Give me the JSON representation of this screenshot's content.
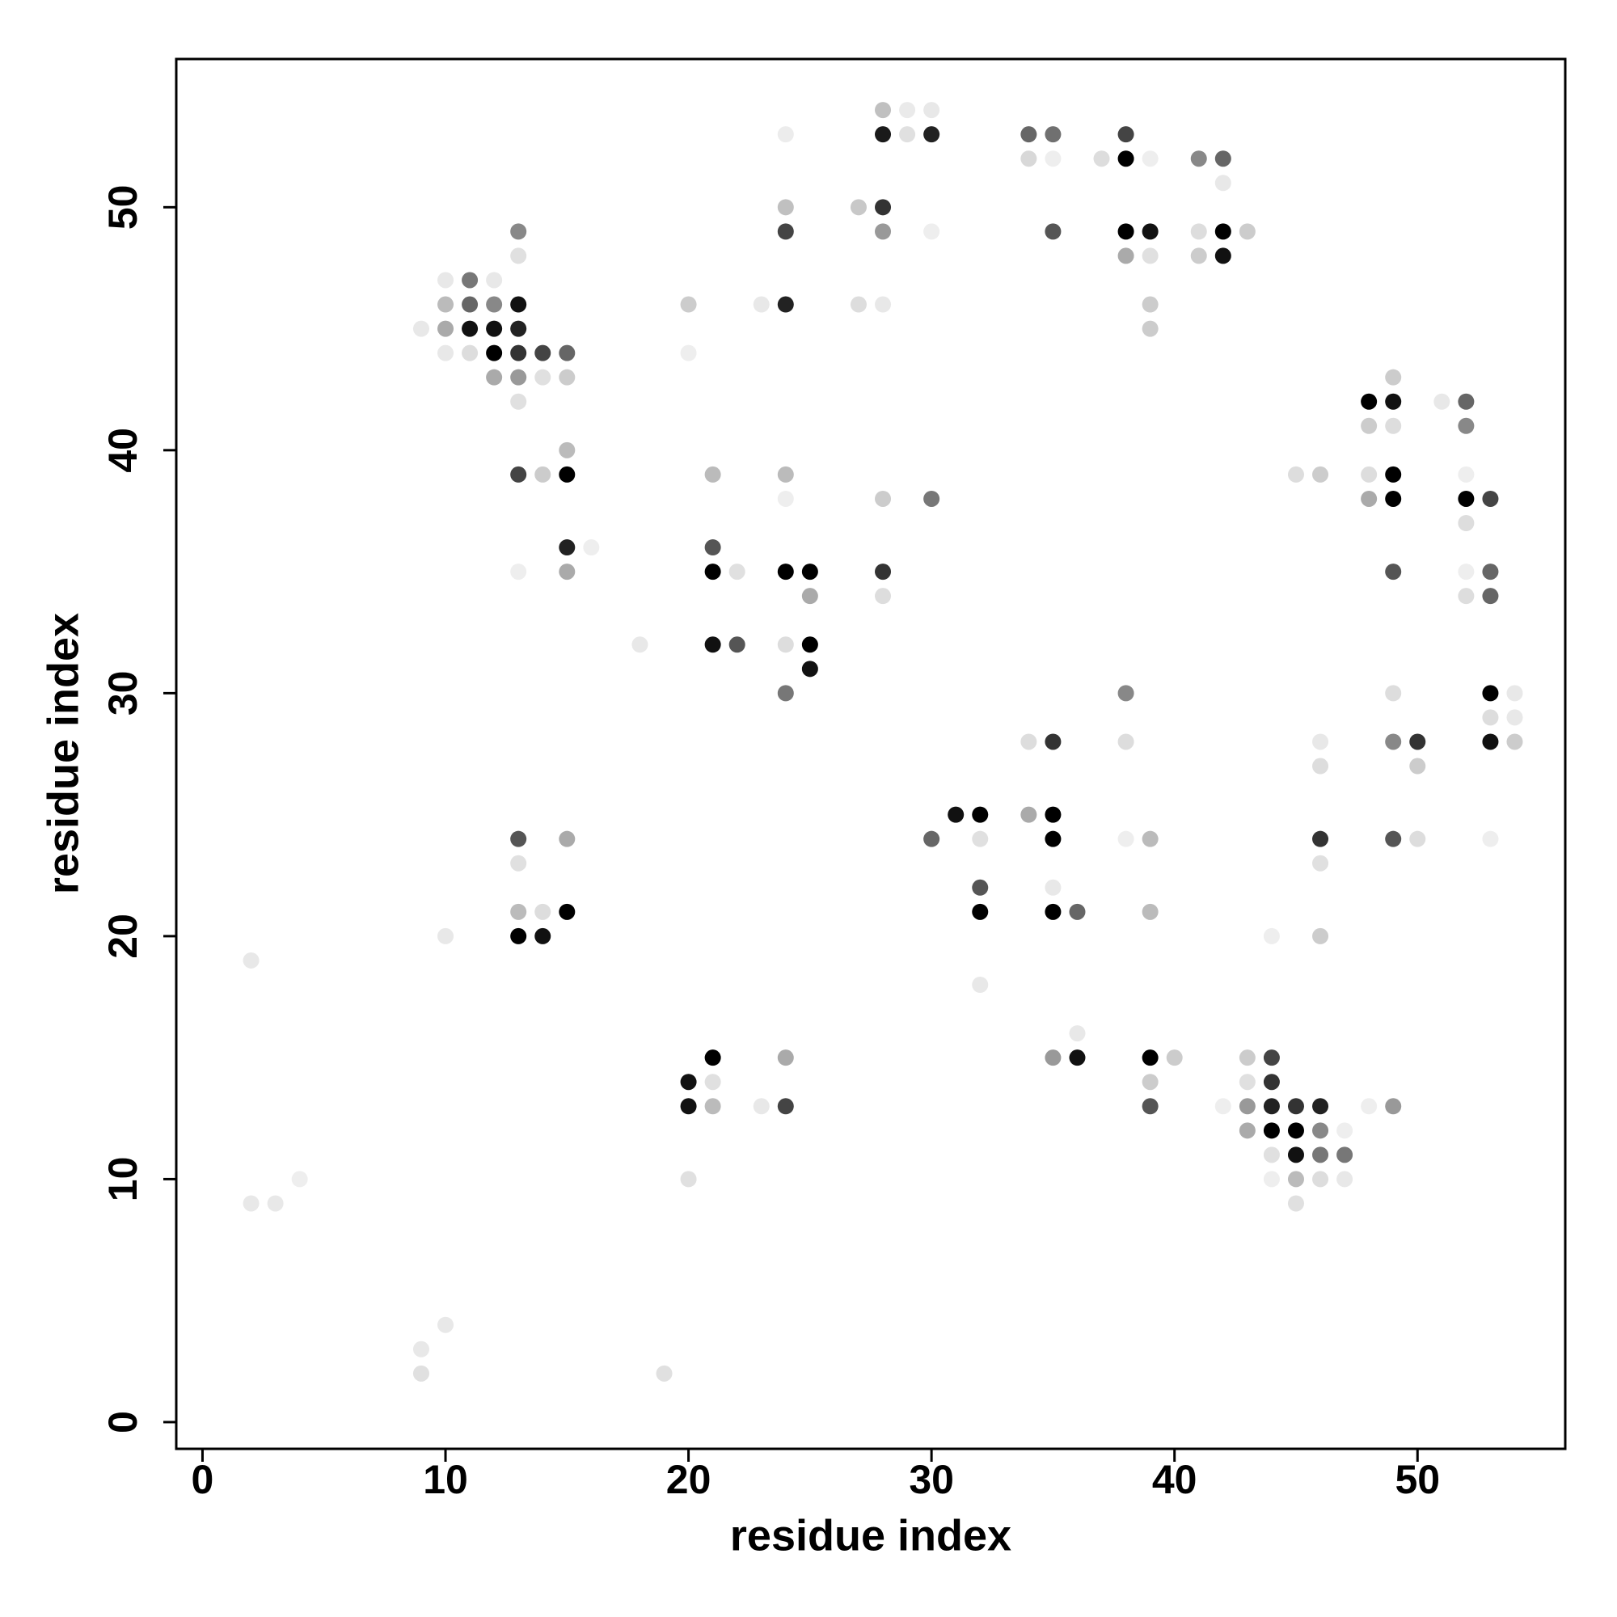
{
  "chart_data": {
    "type": "scatter",
    "xlabel": "residue index",
    "ylabel": "residue index",
    "xlim": [
      -1.08,
      56.08
    ],
    "ylim": [
      -1.1,
      56.1
    ],
    "xticks": [
      0,
      10,
      20,
      30,
      40,
      50
    ],
    "yticks": [
      0,
      10,
      20,
      30,
      40,
      50
    ],
    "x": [
      28,
      29,
      30,
      24,
      28,
      29,
      30,
      34,
      35,
      38,
      34,
      35,
      37,
      38,
      39,
      41,
      42,
      42,
      24,
      27,
      28,
      13,
      24,
      28,
      30,
      35,
      38,
      39,
      41,
      42,
      43,
      13,
      38,
      39,
      41,
      42,
      10,
      11,
      12,
      10,
      11,
      12,
      13,
      20,
      23,
      24,
      27,
      28,
      39,
      9,
      10,
      11,
      12,
      13,
      39,
      10,
      11,
      12,
      13,
      14,
      15,
      20,
      12,
      13,
      14,
      15,
      49,
      13,
      48,
      49,
      51,
      52,
      48,
      49,
      52,
      15,
      13,
      14,
      15,
      21,
      24,
      45,
      46,
      48,
      49,
      52,
      24,
      28,
      30,
      48,
      49,
      52,
      53,
      52,
      15,
      16,
      21,
      13,
      15,
      21,
      22,
      24,
      25,
      28,
      49,
      52,
      53,
      25,
      28,
      52,
      53,
      18,
      21,
      22,
      24,
      25,
      25,
      24,
      38,
      49,
      53,
      54,
      53,
      54,
      34,
      35,
      38,
      46,
      49,
      50,
      53,
      54,
      46,
      50,
      31,
      32,
      34,
      35,
      13,
      15,
      30,
      32,
      35,
      38,
      39,
      46,
      49,
      50,
      53,
      13,
      46,
      32,
      35,
      13,
      14,
      15,
      32,
      35,
      36,
      39,
      10,
      13,
      14,
      44,
      46,
      2,
      32,
      36,
      21,
      24,
      35,
      36,
      39,
      40,
      43,
      44,
      20,
      21,
      39,
      43,
      44,
      20,
      21,
      23,
      24,
      39,
      42,
      43,
      44,
      45,
      46,
      48,
      49,
      43,
      44,
      45,
      46,
      47,
      44,
      45,
      46,
      47,
      4,
      20,
      44,
      45,
      46,
      47,
      2,
      3,
      45,
      10,
      9,
      9,
      19
    ],
    "values": [
      54,
      54,
      54,
      53,
      53,
      53,
      53,
      53,
      53,
      53,
      52,
      52,
      52,
      52,
      52,
      52,
      52,
      51,
      50,
      50,
      50,
      49,
      49,
      49,
      49,
      49,
      49,
      49,
      49,
      49,
      49,
      48,
      48,
      48,
      48,
      48,
      47,
      47,
      47,
      46,
      46,
      46,
      46,
      46,
      46,
      46,
      46,
      46,
      46,
      45,
      45,
      45,
      45,
      45,
      45,
      44,
      44,
      44,
      44,
      44,
      44,
      44,
      43,
      43,
      43,
      43,
      43,
      42,
      42,
      42,
      42,
      42,
      41,
      41,
      41,
      40,
      39,
      39,
      39,
      39,
      39,
      39,
      39,
      39,
      39,
      39,
      38,
      38,
      38,
      38,
      38,
      38,
      38,
      37,
      36,
      36,
      36,
      35,
      35,
      35,
      35,
      35,
      35,
      35,
      35,
      35,
      35,
      34,
      34,
      34,
      34,
      32,
      32,
      32,
      32,
      32,
      31,
      30,
      30,
      30,
      30,
      30,
      29,
      29,
      28,
      28,
      28,
      28,
      28,
      28,
      28,
      28,
      27,
      27,
      25,
      25,
      25,
      25,
      24,
      24,
      24,
      24,
      24,
      24,
      24,
      24,
      24,
      24,
      24,
      23,
      23,
      22,
      22,
      21,
      21,
      21,
      21,
      21,
      21,
      21,
      20,
      20,
      20,
      20,
      20,
      19,
      18,
      16,
      15,
      15,
      15,
      15,
      15,
      15,
      15,
      15,
      14,
      14,
      14,
      14,
      14,
      13,
      13,
      13,
      13,
      13,
      13,
      13,
      13,
      13,
      13,
      13,
      13,
      12,
      12,
      12,
      12,
      12,
      11,
      11,
      11,
      11,
      10,
      10,
      10,
      10,
      10,
      10,
      9,
      9,
      9,
      4,
      3,
      2,
      2
    ],
    "colors": [
      "#c0c0c0",
      "#eaeaea",
      "#e8e8e8",
      "#ececec",
      "#1a1a1a",
      "#e0e0e0",
      "#222222",
      "#666666",
      "#707070",
      "#444444",
      "#d8d8d8",
      "#eeeeee",
      "#dddddd",
      "#000000",
      "#eeeeee",
      "#888888",
      "#666666",
      "#e8e8e8",
      "#c0c0c0",
      "#c8c8c8",
      "#333333",
      "#888888",
      "#444444",
      "#999999",
      "#eeeeee",
      "#555555",
      "#000000",
      "#111111",
      "#dddddd",
      "#000000",
      "#cccccc",
      "#e0e0e0",
      "#aaaaaa",
      "#e0e0e0",
      "#cccccc",
      "#111111",
      "#e8e8e8",
      "#777777",
      "#e8e8e8",
      "#bbbbbb",
      "#666666",
      "#888888",
      "#111111",
      "#cccccc",
      "#e8e8e8",
      "#222222",
      "#dddddd",
      "#e8e8e8",
      "#cccccc",
      "#e8e8e8",
      "#aaaaaa",
      "#111111",
      "#111111",
      "#222222",
      "#cccccc",
      "#e8e8e8",
      "#dddddd",
      "#000000",
      "#333333",
      "#444444",
      "#666666",
      "#eeeeee",
      "#aaaaaa",
      "#999999",
      "#e0e0e0",
      "#cccccc",
      "#cccccc",
      "#e0e0e0",
      "#000000",
      "#111111",
      "#e8e8e8",
      "#666666",
      "#cccccc",
      "#dddddd",
      "#888888",
      "#bbbbbb",
      "#444444",
      "#cccccc",
      "#000000",
      "#bbbbbb",
      "#bbbbbb",
      "#dddddd",
      "#cccccc",
      "#dddddd",
      "#000000",
      "#eeeeee",
      "#eeeeee",
      "#cccccc",
      "#777777",
      "#aaaaaa",
      "#000000",
      "#000000",
      "#444444",
      "#dddddd",
      "#222222",
      "#eeeeee",
      "#555555",
      "#eeeeee",
      "#aaaaaa",
      "#000000",
      "#e0e0e0",
      "#000000",
      "#000000",
      "#333333",
      "#555555",
      "#eeeeee",
      "#666666",
      "#aaaaaa",
      "#dddddd",
      "#dddddd",
      "#666666",
      "#e8e8e8",
      "#111111",
      "#555555",
      "#dddddd",
      "#000000",
      "#111111",
      "#777777",
      "#888888",
      "#dddddd",
      "#000000",
      "#e8e8e8",
      "#dddddd",
      "#e8e8e8",
      "#dddddd",
      "#333333",
      "#dddddd",
      "#e8e8e8",
      "#888888",
      "#333333",
      "#111111",
      "#cccccc",
      "#dddddd",
      "#cccccc",
      "#111111",
      "#000000",
      "#aaaaaa",
      "#000000",
      "#555555",
      "#aaaaaa",
      "#666666",
      "#e0e0e0",
      "#000000",
      "#eeeeee",
      "#bbbbbb",
      "#333333",
      "#555555",
      "#dddddd",
      "#eeeeee",
      "#e0e0e0",
      "#e0e0e0",
      "#555555",
      "#e8e8e8",
      "#bbbbbb",
      "#dddddd",
      "#000000",
      "#000000",
      "#000000",
      "#666666",
      "#bbbbbb",
      "#e8e8e8",
      "#000000",
      "#111111",
      "#eeeeee",
      "#cccccc",
      "#e8e8e8",
      "#e8e8e8",
      "#e8e8e8",
      "#000000",
      "#aaaaaa",
      "#999999",
      "#111111",
      "#000000",
      "#cccccc",
      "#cccccc",
      "#444444",
      "#111111",
      "#e0e0e0",
      "#cccccc",
      "#e0e0e0",
      "#333333",
      "#111111",
      "#bbbbbb",
      "#e8e8e8",
      "#444444",
      "#555555",
      "#eeeeee",
      "#999999",
      "#222222",
      "#333333",
      "#222222",
      "#eeeeee",
      "#999999",
      "#aaaaaa",
      "#000000",
      "#000000",
      "#888888",
      "#eeeeee",
      "#e0e0e0",
      "#111111",
      "#777777",
      "#777777",
      "#eeeeee",
      "#e0e0e0",
      "#eeeeee",
      "#bbbbbb",
      "#dddddd",
      "#e8e8e8",
      "#e8e8e8",
      "#e8e8e8",
      "#e0e0e0",
      "#e8e8e8",
      "#e8e8e8",
      "#e0e0e0",
      "#e0e0e0"
    ]
  }
}
